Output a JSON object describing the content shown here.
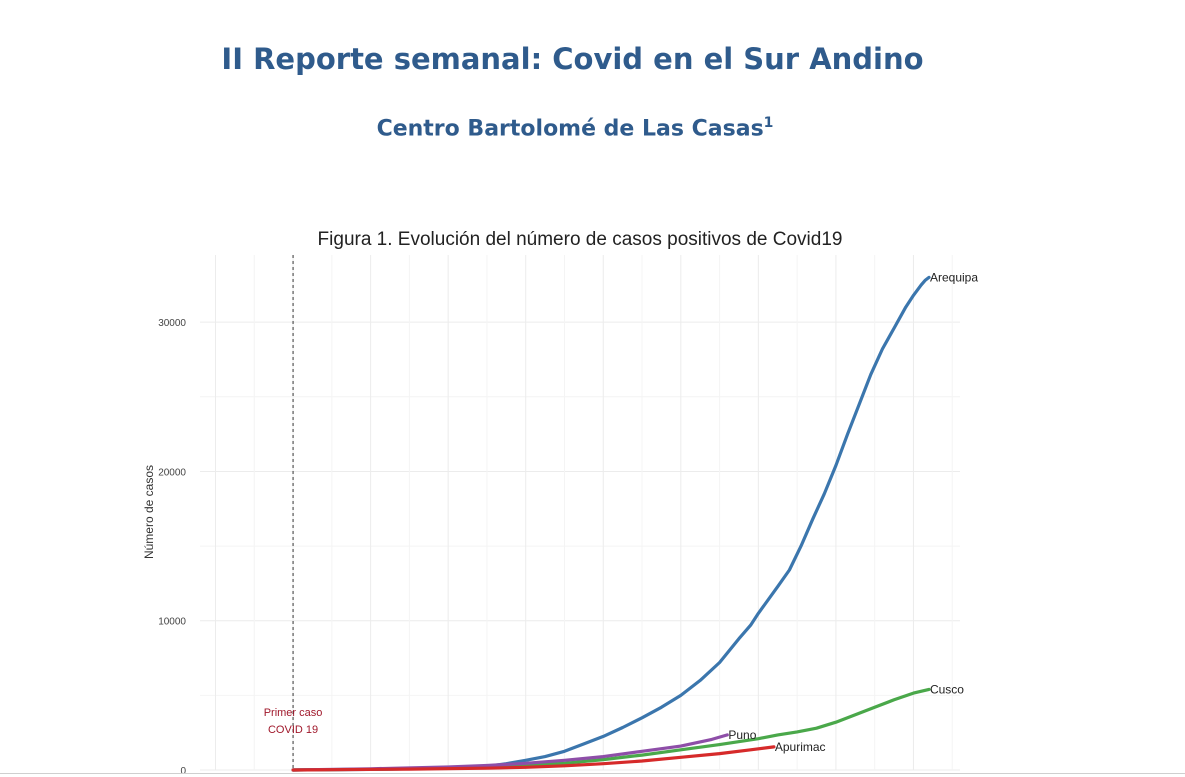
{
  "header": {
    "title": "II Reporte semanal: Covid en el Sur Andino",
    "subtitle": "Centro Bartolomé de Las Casas",
    "subtitle_sup": "1"
  },
  "chart_data": {
    "type": "line",
    "title": "Figura 1. Evolución del número de casos positivos de Covid19",
    "xlabel": "",
    "ylabel": "Número de casos",
    "x_unit": "days since first case",
    "xlim": [
      -24,
      172
    ],
    "ylim": [
      0,
      34500
    ],
    "yticks": [
      0,
      10000,
      20000,
      30000
    ],
    "grid": true,
    "annotation": {
      "x": 0,
      "lines": [
        "Primer caso",
        "COVID 19"
      ],
      "color": "#a0182b"
    },
    "series": [
      {
        "name": "Arequipa",
        "color": "#3b76ad",
        "x": [
          0,
          20,
          40,
          50,
          55,
          60,
          65,
          70,
          75,
          80,
          85,
          90,
          95,
          100,
          105,
          110,
          115,
          118,
          120,
          125,
          128,
          131,
          134,
          137,
          140,
          143,
          146,
          149,
          152,
          155,
          158,
          160,
          162,
          163,
          164
        ],
        "y": [
          0,
          40,
          120,
          250,
          420,
          650,
          900,
          1250,
          1750,
          2250,
          2850,
          3500,
          4200,
          5000,
          6000,
          7200,
          8800,
          9700,
          10500,
          12300,
          13400,
          15000,
          16800,
          18500,
          20400,
          22500,
          24500,
          26500,
          28200,
          29600,
          31000,
          31800,
          32500,
          32800,
          33000
        ]
      },
      {
        "name": "Cusco",
        "color": "#4aa84a",
        "x": [
          0,
          30,
          50,
          70,
          80,
          90,
          100,
          110,
          120,
          125,
          130,
          135,
          140,
          145,
          150,
          155,
          160,
          164
        ],
        "y": [
          0,
          80,
          180,
          450,
          700,
          1000,
          1350,
          1700,
          2100,
          2350,
          2550,
          2800,
          3200,
          3700,
          4200,
          4700,
          5150,
          5400
        ]
      },
      {
        "name": "Puno",
        "color": "#8e4ea8",
        "x": [
          0,
          20,
          40,
          50,
          60,
          70,
          80,
          90,
          100,
          108,
          112
        ],
        "y": [
          0,
          80,
          200,
          300,
          450,
          650,
          900,
          1250,
          1600,
          2050,
          2350
        ]
      },
      {
        "name": "Apurimac",
        "color": "#d62a2a",
        "x": [
          0,
          30,
          50,
          60,
          70,
          80,
          90,
          100,
          110,
          118,
          124
        ],
        "y": [
          0,
          60,
          120,
          180,
          280,
          420,
          600,
          850,
          1100,
          1350,
          1550
        ]
      }
    ]
  }
}
